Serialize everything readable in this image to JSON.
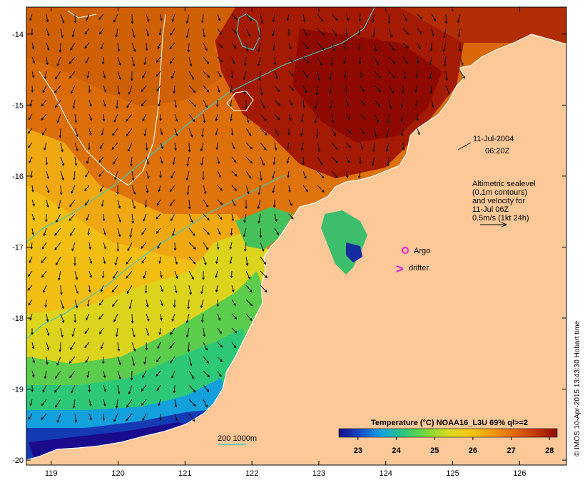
{
  "map": {
    "lon_range": [
      118.63,
      126.7
    ],
    "lat_range": [
      -20.07,
      -13.62
    ],
    "lon_ticks": [
      "119",
      "120",
      "121",
      "122",
      "123",
      "124",
      "125",
      "126"
    ],
    "lat_ticks": [
      "-14",
      "-15",
      "-16",
      "-17",
      "-18",
      "-19",
      "-20"
    ]
  },
  "annotations": {
    "date": "11-Jul-2004",
    "time": "06:20Z",
    "altimetric_lines": [
      "Altimetric sealevel",
      "(0.1m contours)",
      "and velocity for",
      "11-Jul 06Z",
      "0.5m/s (1kt 24h)"
    ],
    "argo_label": "Argo",
    "drifter_label": "drifter",
    "drifter_symbol": ">",
    "depth_legend": "200  1000m",
    "credit": "© IMOS 10-Apr-2015 13:43:30 Hobart time"
  },
  "colorbar": {
    "title": "Temperature (°C) NOAA16_L3U 69% ql>=2",
    "ticks": [
      "23",
      "24",
      "25",
      "26",
      "27",
      "28"
    ],
    "range": [
      22.5,
      28.2
    ],
    "colors": [
      "#1a0a8c",
      "#1450c8",
      "#12a6e0",
      "#2cc878",
      "#7ad83a",
      "#dada1e",
      "#f6c812",
      "#f19a12",
      "#e36a0c",
      "#c43a06",
      "#8e0a00"
    ]
  },
  "colors": {
    "land": "#fcc898",
    "sea_warm": "#9c1400",
    "sea_mid": "#e27a10",
    "contour_isobath": "#3ec8c0",
    "argo": "#e020e0",
    "drifter": "#e020e0"
  }
}
